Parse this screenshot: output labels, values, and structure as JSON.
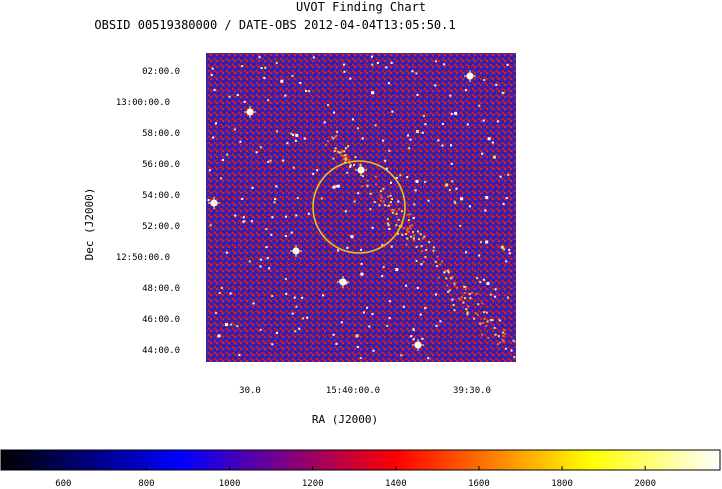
{
  "title": "UVOT Finding Chart",
  "subtitle": "OBSID 00519380000 / DATE-OBS 2012-04-04T13:05:50.1",
  "chart_data": {
    "type": "heatmap",
    "title": "UVOT Finding Chart",
    "subtitle": "OBSID 00519380000 / DATE-OBS 2012-04-04T13:05:50.1",
    "xlabel": "RA (J2000)",
    "ylabel": "Dec (J2000)",
    "x_ticks": [
      "30.0",
      "15:40:00.0",
      "39:30.0"
    ],
    "y_ticks": [
      "02:00.0",
      "13:00:00.0",
      "58:00.0",
      "56:00.0",
      "54:00.0",
      "52:00.0",
      "12:50:00.0",
      "48:00.0",
      "46:00.0",
      "44:00.0"
    ],
    "colorbar": {
      "ticks": [
        600,
        800,
        1000,
        1200,
        1400,
        1600,
        1800,
        2000
      ],
      "range": [
        450,
        2180
      ],
      "stops": [
        "#000000",
        "#0000ff",
        "#ff0000",
        "#ffff00",
        "#ffffff"
      ]
    },
    "target_circle_color": "#e8c020"
  }
}
